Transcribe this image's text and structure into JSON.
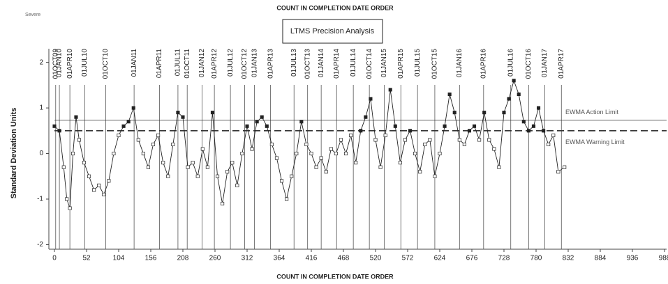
{
  "chart_data": {
    "type": "line",
    "top_label": "COUNT IN COMPLETION DATE ORDER",
    "note": "Severe",
    "title": "LTMS Precision Analysis",
    "xlabel": "COUNT IN COMPLETION DATE ORDER",
    "ylabel": "Standard Deviation Units",
    "x": [
      0,
      8,
      15,
      20,
      25,
      30,
      35,
      40,
      48,
      56,
      64,
      72,
      80,
      88,
      96,
      104,
      112,
      120,
      128,
      136,
      144,
      152,
      160,
      168,
      176,
      184,
      192,
      200,
      208,
      216,
      224,
      232,
      240,
      248,
      256,
      264,
      272,
      280,
      288,
      296,
      304,
      312,
      320,
      328,
      336,
      344,
      352,
      360,
      368,
      376,
      384,
      392,
      400,
      408,
      416,
      424,
      432,
      440,
      448,
      456,
      464,
      472,
      480,
      488,
      496,
      504,
      512,
      520,
      528,
      536,
      544,
      552,
      560,
      568,
      576,
      584,
      592,
      600,
      608,
      616,
      624,
      632,
      640,
      648,
      656,
      664,
      672,
      680,
      688,
      696,
      704,
      712,
      720,
      728,
      736,
      744,
      752,
      760,
      768,
      776,
      784,
      792,
      800,
      808,
      816,
      826
    ],
    "series": [
      {
        "name": "EWMA",
        "color": "#222222",
        "values": [
          0.6,
          0.5,
          -0.3,
          -1.0,
          -1.2,
          0.0,
          0.8,
          0.3,
          -0.2,
          -0.5,
          -0.8,
          -0.7,
          -0.9,
          -0.6,
          0.0,
          0.4,
          0.6,
          0.7,
          1.0,
          0.3,
          0.0,
          -0.3,
          0.2,
          0.4,
          -0.2,
          -0.5,
          0.2,
          0.9,
          0.8,
          -0.3,
          -0.2,
          -0.5,
          0.1,
          -0.3,
          0.9,
          -0.5,
          -1.1,
          -0.4,
          -0.2,
          -0.7,
          0.0,
          0.6,
          0.1,
          0.7,
          0.8,
          0.6,
          0.2,
          -0.1,
          -0.6,
          -1.0,
          -0.5,
          0.0,
          0.7,
          0.2,
          0.0,
          -0.3,
          -0.1,
          -0.4,
          0.1,
          0.0,
          0.3,
          0.0,
          0.4,
          -0.2,
          0.5,
          0.8,
          1.2,
          0.3,
          -0.3,
          0.4,
          1.4,
          0.6,
          -0.2,
          0.3,
          0.5,
          0.0,
          -0.4,
          0.2,
          0.3,
          -0.5,
          0.0,
          0.6,
          1.3,
          0.9,
          0.3,
          0.2,
          0.5,
          0.6,
          0.3,
          0.9,
          0.3,
          0.1,
          -0.3,
          0.9,
          1.2,
          1.6,
          1.3,
          0.7,
          0.5,
          0.6,
          1.0,
          0.5,
          0.2,
          0.4,
          -0.4,
          -0.3
        ]
      }
    ],
    "xlim": [
      0,
      988
    ],
    "xticks": [
      0,
      52,
      104,
      156,
      208,
      260,
      312,
      364,
      416,
      468,
      520,
      572,
      624,
      676,
      728,
      780,
      832,
      884,
      936,
      988
    ],
    "ylim": [
      -2.1,
      2.3
    ],
    "yticks": [
      -2,
      -1,
      0,
      1,
      2
    ],
    "reference_lines": [
      {
        "label": "EWMA Action Limit",
        "value": 0.73,
        "style": "solid"
      },
      {
        "label": "EWMA Warning Limit",
        "value": 0.5,
        "style": "dashed"
      }
    ],
    "date_lines": [
      {
        "label": "01OCT09",
        "x": 2
      },
      {
        "label": "01JAN10",
        "x": 8
      },
      {
        "label": "01APR10",
        "x": 25
      },
      {
        "label": "01JUL10",
        "x": 49
      },
      {
        "label": "01OCT10",
        "x": 83
      },
      {
        "label": "01JAN11",
        "x": 129
      },
      {
        "label": "01APR11",
        "x": 170
      },
      {
        "label": "01JUL11",
        "x": 200
      },
      {
        "label": "01OCT11",
        "x": 215
      },
      {
        "label": "01JAN12",
        "x": 239
      },
      {
        "label": "01APR12",
        "x": 259
      },
      {
        "label": "01JUL12",
        "x": 285
      },
      {
        "label": "01OCT12",
        "x": 308
      },
      {
        "label": "01JAN13",
        "x": 324
      },
      {
        "label": "01APR13",
        "x": 350
      },
      {
        "label": "01JUL13",
        "x": 388
      },
      {
        "label": "01OCT13",
        "x": 410
      },
      {
        "label": "01JAN14",
        "x": 432
      },
      {
        "label": "01APR14",
        "x": 457
      },
      {
        "label": "01JUL14",
        "x": 484
      },
      {
        "label": "01OCT14",
        "x": 510
      },
      {
        "label": "01JAN15",
        "x": 534
      },
      {
        "label": "01APR15",
        "x": 561
      },
      {
        "label": "01JUL15",
        "x": 588
      },
      {
        "label": "01OCT15",
        "x": 616
      },
      {
        "label": "01JAN16",
        "x": 656
      },
      {
        "label": "01APR16",
        "x": 695
      },
      {
        "label": "01JUL16",
        "x": 739
      },
      {
        "label": "01OCT16",
        "x": 768
      },
      {
        "label": "01JAN17",
        "x": 794
      },
      {
        "label": "01APR17",
        "x": 821
      }
    ]
  }
}
